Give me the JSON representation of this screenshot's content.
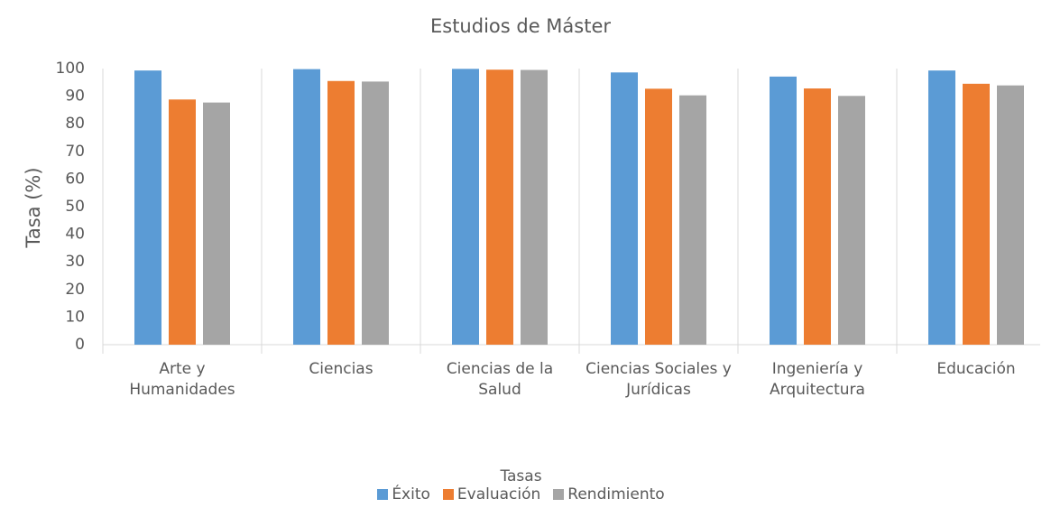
{
  "chart_data": {
    "type": "bar",
    "title": "Estudios de Máster",
    "y_label": "Tasa (%)",
    "legend_title": "Tasas",
    "legend": "bottom",
    "categories": [
      "Arte y Humanidades",
      "Ciencias",
      "Ciencias de la Salud",
      "Ciencias Sociales y Jurídicas",
      "Ingeniería y Arquitectura",
      "Educación"
    ],
    "series": [
      {
        "name": "Éxito",
        "color": "#5b9bd5",
        "values": [
          99.3,
          99.8,
          99.9,
          98.6,
          97.1,
          99.3
        ]
      },
      {
        "name": "Evaluación",
        "color": "#ed7d31",
        "values": [
          88.8,
          95.5,
          99.6,
          92.7,
          92.8,
          94.5
        ]
      },
      {
        "name": "Rendimiento",
        "color": "#a5a5a5",
        "values": [
          87.7,
          95.3,
          99.5,
          90.3,
          90.1,
          93.9
        ]
      }
    ],
    "ylim": [
      0,
      100
    ],
    "yticks": [
      0,
      10,
      20,
      30,
      40,
      50,
      60,
      70,
      80,
      90,
      100
    ]
  }
}
